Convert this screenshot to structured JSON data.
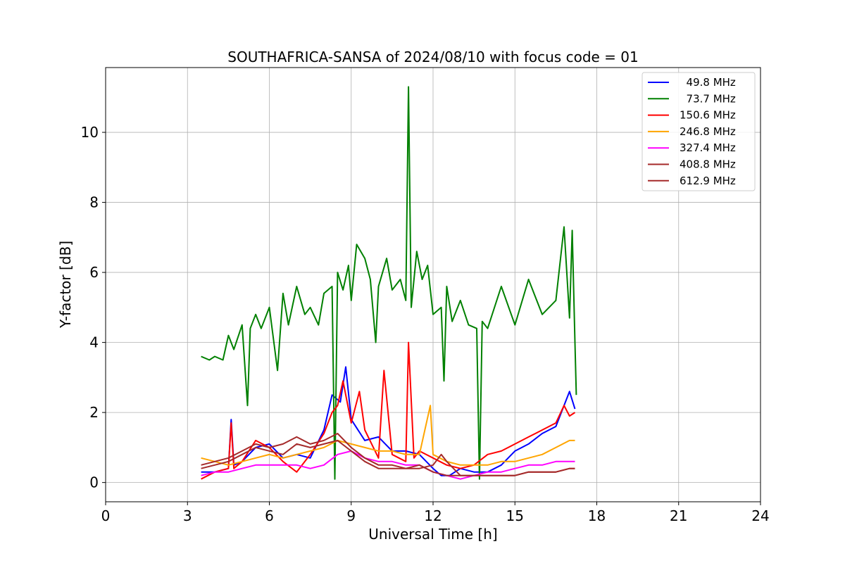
{
  "chart_data": {
    "type": "line",
    "title": "SOUTHAFRICA-SANSA of 2024/08/10 with focus code = 01",
    "xlabel": "Universal Time [h]",
    "ylabel": "Y-factor [dB]",
    "xlim": [
      0,
      24
    ],
    "ylim": [
      -0.55,
      11.85
    ],
    "xticks": [
      0,
      3,
      6,
      9,
      12,
      15,
      18,
      21,
      24
    ],
    "xtick_labels": [
      "0",
      "3",
      "6",
      "9",
      "12",
      "15",
      "18",
      "21",
      "24"
    ],
    "yticks": [
      0,
      2,
      4,
      6,
      8,
      10
    ],
    "ytick_labels": [
      "0",
      "2",
      "4",
      "6",
      "8",
      "10"
    ],
    "grid": true,
    "legend_position": "top-right",
    "series": [
      {
        "name": "  49.8 MHz",
        "color": "#0000ff",
        "x": [
          3.5,
          4.0,
          4.5,
          4.6,
          4.7,
          5.0,
          5.5,
          6.0,
          6.5,
          7.0,
          7.5,
          8.0,
          8.3,
          8.6,
          8.8,
          9.0,
          9.5,
          10.0,
          10.5,
          11.0,
          11.5,
          12.0,
          12.3,
          12.6,
          13.0,
          13.5,
          14.0,
          14.5,
          15.0,
          15.5,
          16.0,
          16.5,
          17.0,
          17.2
        ],
        "y": [
          0.3,
          0.3,
          0.4,
          1.8,
          0.5,
          0.6,
          1.0,
          1.1,
          0.7,
          0.8,
          0.7,
          1.5,
          2.5,
          2.3,
          3.3,
          1.8,
          1.2,
          1.3,
          0.9,
          0.9,
          0.8,
          0.4,
          0.2,
          0.2,
          0.4,
          0.3,
          0.3,
          0.5,
          0.9,
          1.1,
          1.4,
          1.6,
          2.6,
          2.1
        ]
      },
      {
        "name": "  73.7 MHz",
        "color": "#008000",
        "x": [
          3.5,
          3.8,
          4.0,
          4.3,
          4.5,
          4.7,
          5.0,
          5.2,
          5.3,
          5.5,
          5.7,
          6.0,
          6.3,
          6.5,
          6.7,
          7.0,
          7.3,
          7.5,
          7.8,
          8.0,
          8.3,
          8.4,
          8.5,
          8.7,
          8.9,
          9.0,
          9.2,
          9.5,
          9.7,
          9.9,
          10.0,
          10.3,
          10.5,
          10.8,
          11.0,
          11.1,
          11.2,
          11.4,
          11.6,
          11.8,
          12.0,
          12.3,
          12.4,
          12.5,
          12.7,
          13.0,
          13.3,
          13.6,
          13.7,
          13.8,
          14.0,
          14.5,
          15.0,
          15.5,
          16.0,
          16.5,
          16.8,
          17.0,
          17.1,
          17.2,
          17.25
        ],
        "y": [
          3.6,
          3.5,
          3.6,
          3.5,
          4.2,
          3.8,
          4.5,
          2.2,
          4.4,
          4.8,
          4.4,
          5.0,
          3.2,
          5.4,
          4.5,
          5.6,
          4.8,
          5.0,
          4.5,
          5.4,
          5.6,
          0.1,
          6.0,
          5.5,
          6.2,
          5.2,
          6.8,
          6.4,
          5.8,
          4.0,
          5.6,
          6.4,
          5.5,
          5.8,
          5.2,
          11.3,
          5.0,
          6.6,
          5.8,
          6.2,
          4.8,
          5.0,
          2.9,
          5.6,
          4.6,
          5.2,
          4.5,
          4.4,
          0.1,
          4.6,
          4.4,
          5.6,
          4.5,
          5.8,
          4.8,
          5.2,
          7.3,
          4.7,
          7.2,
          4.0,
          2.5
        ]
      },
      {
        "name": "150.6 MHz",
        "color": "#ff0000",
        "x": [
          3.5,
          4.0,
          4.5,
          4.6,
          4.7,
          5.0,
          5.5,
          6.0,
          6.5,
          7.0,
          7.5,
          8.0,
          8.3,
          8.5,
          8.7,
          9.0,
          9.3,
          9.5,
          10.0,
          10.2,
          10.5,
          11.0,
          11.1,
          11.3,
          11.5,
          12.0,
          12.5,
          13.0,
          13.5,
          14.0,
          14.5,
          15.0,
          15.5,
          16.0,
          16.5,
          16.8,
          17.0,
          17.2
        ],
        "y": [
          0.1,
          0.3,
          0.4,
          1.7,
          0.4,
          0.6,
          1.2,
          1.0,
          0.6,
          0.3,
          0.8,
          1.4,
          2.0,
          2.2,
          2.9,
          1.7,
          2.6,
          1.5,
          0.7,
          3.2,
          0.8,
          0.6,
          4.0,
          0.7,
          0.9,
          0.7,
          0.5,
          0.4,
          0.5,
          0.8,
          0.9,
          1.1,
          1.3,
          1.5,
          1.7,
          2.2,
          1.9,
          2.0
        ]
      },
      {
        "name": "246.8 MHz",
        "color": "#ffa500",
        "x": [
          3.5,
          4.0,
          4.5,
          5.0,
          5.5,
          6.0,
          6.5,
          7.0,
          7.5,
          8.0,
          8.5,
          9.0,
          9.5,
          10.0,
          10.5,
          11.0,
          11.5,
          11.9,
          12.0,
          12.5,
          13.0,
          13.5,
          14.0,
          14.5,
          15.0,
          15.5,
          16.0,
          16.5,
          17.0,
          17.2
        ],
        "y": [
          0.7,
          0.6,
          0.5,
          0.6,
          0.7,
          0.8,
          0.7,
          0.8,
          0.9,
          1.0,
          1.2,
          1.1,
          1.0,
          0.9,
          0.9,
          0.8,
          0.8,
          2.2,
          0.8,
          0.6,
          0.5,
          0.5,
          0.5,
          0.6,
          0.6,
          0.7,
          0.8,
          1.0,
          1.2,
          1.2
        ]
      },
      {
        "name": "327.4 MHz",
        "color": "#ff00ff",
        "x": [
          3.5,
          4.0,
          4.5,
          5.0,
          5.5,
          6.0,
          6.5,
          7.0,
          7.5,
          8.0,
          8.5,
          9.0,
          9.5,
          10.0,
          10.5,
          11.0,
          11.5,
          12.0,
          12.5,
          13.0,
          13.5,
          14.0,
          14.5,
          15.0,
          15.5,
          16.0,
          16.5,
          17.0,
          17.2
        ],
        "y": [
          0.2,
          0.3,
          0.3,
          0.4,
          0.5,
          0.5,
          0.5,
          0.5,
          0.4,
          0.5,
          0.8,
          0.9,
          0.7,
          0.6,
          0.6,
          0.5,
          0.5,
          0.3,
          0.2,
          0.1,
          0.2,
          0.3,
          0.3,
          0.4,
          0.5,
          0.5,
          0.6,
          0.6,
          0.6
        ]
      },
      {
        "name": "408.8 MHz",
        "color": "#a52a2a",
        "x": [
          3.5,
          4.0,
          4.5,
          5.0,
          5.5,
          6.0,
          6.5,
          7.0,
          7.5,
          8.0,
          8.5,
          9.0,
          9.5,
          10.0,
          10.5,
          11.0,
          11.5,
          12.0,
          12.3,
          12.5,
          13.0,
          13.5,
          14.0,
          14.5,
          15.0,
          15.5,
          16.0,
          16.5,
          17.0,
          17.2
        ],
        "y": [
          0.5,
          0.6,
          0.7,
          0.9,
          1.1,
          1.0,
          1.1,
          1.3,
          1.1,
          1.2,
          1.4,
          1.0,
          0.7,
          0.5,
          0.5,
          0.4,
          0.4,
          0.5,
          0.8,
          0.6,
          0.2,
          0.2,
          0.2,
          0.2,
          0.2,
          0.3,
          0.3,
          0.3,
          0.4,
          0.4
        ]
      },
      {
        "name": "612.9 MHz",
        "color": "#a52a2a",
        "x": [
          3.5,
          4.0,
          4.5,
          5.0,
          5.5,
          6.0,
          6.5,
          7.0,
          7.5,
          8.0,
          8.5,
          9.0,
          9.5,
          10.0,
          10.5,
          11.0,
          11.5,
          12.0,
          12.5,
          13.0,
          13.5,
          14.0,
          14.5,
          15.0,
          15.5,
          16.0,
          16.5,
          17.0,
          17.2
        ],
        "y": [
          0.4,
          0.5,
          0.6,
          0.8,
          1.0,
          0.9,
          0.8,
          1.1,
          1.0,
          1.1,
          1.2,
          0.9,
          0.6,
          0.4,
          0.4,
          0.4,
          0.5,
          0.3,
          0.2,
          0.2,
          0.2,
          0.2,
          0.2,
          0.2,
          0.3,
          0.3,
          0.3,
          0.4,
          0.4
        ]
      }
    ]
  }
}
